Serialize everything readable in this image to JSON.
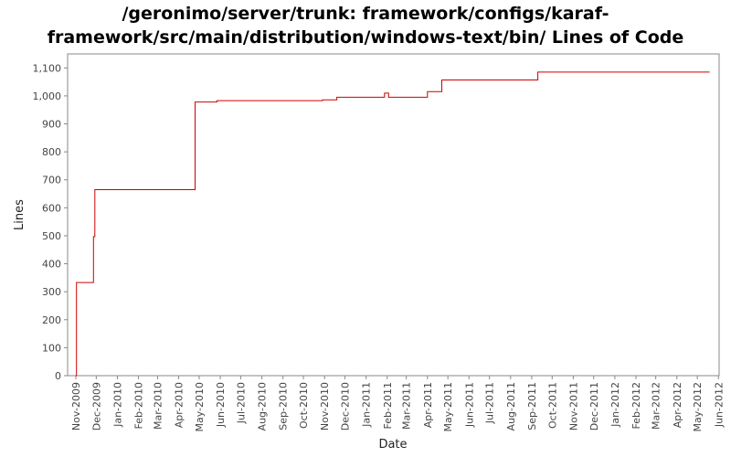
{
  "chart_data": {
    "type": "line",
    "step": true,
    "title_line1": "/geronimo/server/trunk: framework/configs/karaf-",
    "title_line2": "framework/src/main/distribution/windows-text/bin/ Lines of Code",
    "xlabel": "Date",
    "ylabel": "Lines",
    "ylim": [
      0,
      1150
    ],
    "y_ticks": [
      0,
      100,
      200,
      300,
      400,
      500,
      600,
      700,
      800,
      900,
      1000,
      1100
    ],
    "y_tick_labels": [
      "0",
      "100",
      "200",
      "300",
      "400",
      "500",
      "600",
      "700",
      "800",
      "900",
      "1,000",
      "1,100"
    ],
    "x_range": [
      "2009-10-20",
      "2012-06-02"
    ],
    "x_tick_dates": [
      "2009-11-01",
      "2009-12-01",
      "2010-01-01",
      "2010-02-01",
      "2010-03-01",
      "2010-04-01",
      "2010-05-01",
      "2010-06-01",
      "2010-07-01",
      "2010-08-01",
      "2010-09-01",
      "2010-10-01",
      "2010-11-01",
      "2010-12-01",
      "2011-01-01",
      "2011-02-01",
      "2011-03-01",
      "2011-04-01",
      "2011-05-01",
      "2011-06-01",
      "2011-07-01",
      "2011-08-01",
      "2011-09-01",
      "2011-10-01",
      "2011-11-01",
      "2011-12-01",
      "2012-01-01",
      "2012-02-01",
      "2012-03-01",
      "2012-04-01",
      "2012-05-01",
      "2012-06-01"
    ],
    "x_tick_labels": [
      "Nov-2009",
      "Dec-2009",
      "Jan-2010",
      "Feb-2010",
      "Mar-2010",
      "Apr-2010",
      "May-2010",
      "Jun-2010",
      "Jul-2010",
      "Aug-2010",
      "Sep-2010",
      "Oct-2010",
      "Nov-2010",
      "Dec-2010",
      "Jan-2011",
      "Feb-2011",
      "Mar-2011",
      "Apr-2011",
      "May-2011",
      "Jun-2011",
      "Jul-2011",
      "Aug-2011",
      "Sep-2011",
      "Oct-2011",
      "Nov-2011",
      "Dec-2011",
      "Jan-2012",
      "Feb-2012",
      "Mar-2012",
      "Apr-2012",
      "May-2012",
      "Jun-2012"
    ],
    "grid": false,
    "legend": "none",
    "series": [
      {
        "color": "#cc0000",
        "points": [
          {
            "x": "2009-11-01",
            "y": 0
          },
          {
            "x": "2009-11-02",
            "y": 333
          },
          {
            "x": "2009-11-26",
            "y": 333
          },
          {
            "x": "2009-11-27",
            "y": 497
          },
          {
            "x": "2009-11-29",
            "y": 665
          },
          {
            "x": "2010-04-24",
            "y": 665
          },
          {
            "x": "2010-04-25",
            "y": 978
          },
          {
            "x": "2010-05-27",
            "y": 983
          },
          {
            "x": "2010-10-29",
            "y": 986
          },
          {
            "x": "2010-11-19",
            "y": 995
          },
          {
            "x": "2011-01-28",
            "y": 1010
          },
          {
            "x": "2011-02-03",
            "y": 995
          },
          {
            "x": "2011-04-01",
            "y": 1015
          },
          {
            "x": "2011-04-22",
            "y": 1057
          },
          {
            "x": "2011-09-10",
            "y": 1085
          },
          {
            "x": "2012-05-19",
            "y": 1085
          }
        ]
      }
    ]
  }
}
